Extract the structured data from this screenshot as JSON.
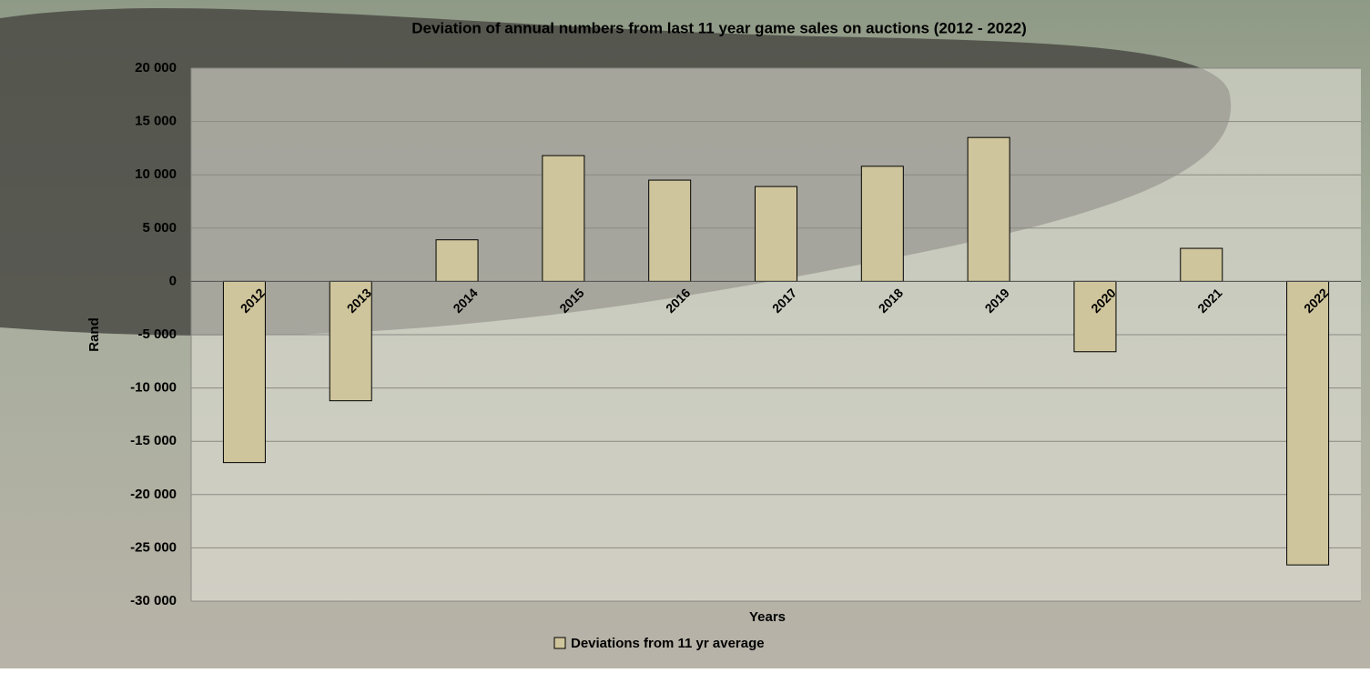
{
  "chart_data": {
    "type": "bar",
    "title": "Deviation of annual numbers from last 11 year game sales on auctions (2012 - 2022)",
    "x_label": "Years",
    "y_label": "Rand",
    "categories": [
      "2012",
      "2013",
      "2014",
      "2015",
      "2016",
      "2017",
      "2018",
      "2019",
      "2020",
      "2021",
      "2022"
    ],
    "series": [
      {
        "name": "Deviations from 11 yr average",
        "color": "#cfc59c",
        "values": [
          -17000,
          -11200,
          3900,
          11800,
          9500,
          8900,
          10800,
          13500,
          -6600,
          3100,
          -26600
        ]
      }
    ],
    "ylim": [
      -30000,
      20000
    ],
    "yticks": [
      {
        "value": -30000,
        "label": "-30 000"
      },
      {
        "value": -25000,
        "label": "-25 000"
      },
      {
        "value": -20000,
        "label": "-20 000"
      },
      {
        "value": -15000,
        "label": "-15 000"
      },
      {
        "value": -10000,
        "label": "-10 000"
      },
      {
        "value": -5000,
        "label": "-5 000"
      },
      0,
      {
        "value": 5000,
        "label": "5 000"
      },
      {
        "value": 10000,
        "label": "10 000"
      },
      {
        "value": 15000,
        "label": "15 000"
      },
      {
        "value": 20000,
        "label": "20 000"
      }
    ],
    "grid": true,
    "legend": "bottom"
  }
}
